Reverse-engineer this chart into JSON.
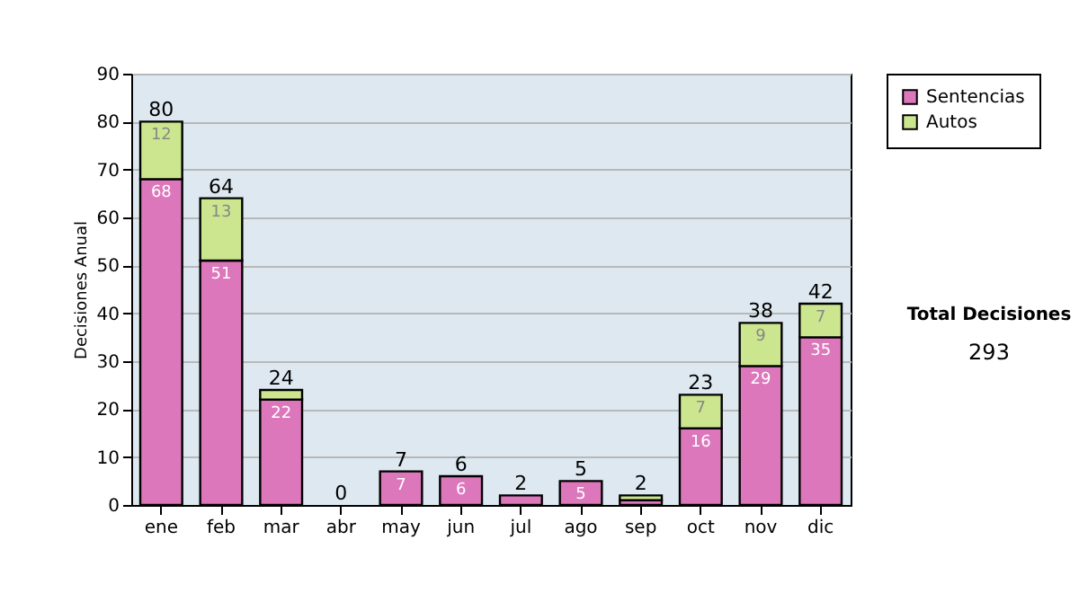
{
  "chart_data": {
    "type": "bar",
    "stacked": true,
    "ylabel": "Decisiones Anual",
    "categories": [
      "ene",
      "feb",
      "mar",
      "abr",
      "may",
      "jun",
      "jul",
      "ago",
      "sep",
      "oct",
      "nov",
      "dic"
    ],
    "series": [
      {
        "name": "Sentencias",
        "color": "#dd77bb",
        "values": [
          68,
          51,
          22,
          0,
          7,
          6,
          2,
          5,
          1,
          16,
          29,
          35
        ],
        "value_labels": [
          "68",
          "51",
          "22",
          null,
          "7",
          "6",
          null,
          "5",
          null,
          "16",
          "29",
          "35"
        ]
      },
      {
        "name": "Autos",
        "color": "#cce68f",
        "values": [
          12,
          13,
          2,
          0,
          0,
          0,
          0,
          0,
          1,
          7,
          9,
          7
        ],
        "value_labels": [
          "12",
          "13",
          null,
          null,
          null,
          null,
          null,
          null,
          null,
          "7",
          "9",
          "7"
        ]
      }
    ],
    "totals": [
      "80",
      "64",
      "24",
      "0",
      "7",
      "6",
      "2",
      "5",
      "2",
      "23",
      "38",
      "42"
    ],
    "ylim": [
      0,
      90
    ],
    "yticks": [
      0,
      10,
      20,
      30,
      40,
      50,
      60,
      70,
      80,
      90
    ],
    "grid": "y",
    "legend": "right",
    "annotations": [
      "Total Decisiones",
      "293"
    ]
  }
}
